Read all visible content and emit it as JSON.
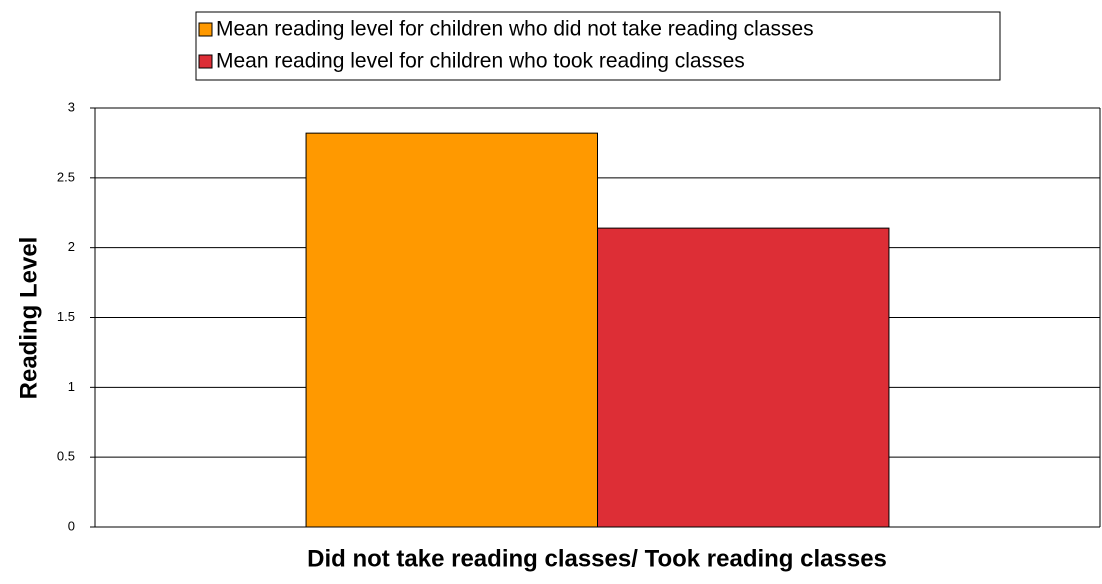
{
  "chart_data": {
    "type": "bar",
    "x_label": "Did not take reading classes/ Took reading classes",
    "y_label": "Reading Level",
    "categories": [
      null
    ],
    "series": [
      {
        "name": "Mean reading level for children who did not take reading classes",
        "color": "#ff9900",
        "values": [
          2.82
        ]
      },
      {
        "name": "Mean reading level for children who took reading classes",
        "color": "#dd2e36",
        "values": [
          2.14
        ]
      }
    ],
    "ylim": [
      0,
      3
    ],
    "yticks": [
      0,
      0.5,
      1,
      1.5,
      2,
      2.5,
      3
    ],
    "grid": true,
    "legend": "top"
  }
}
